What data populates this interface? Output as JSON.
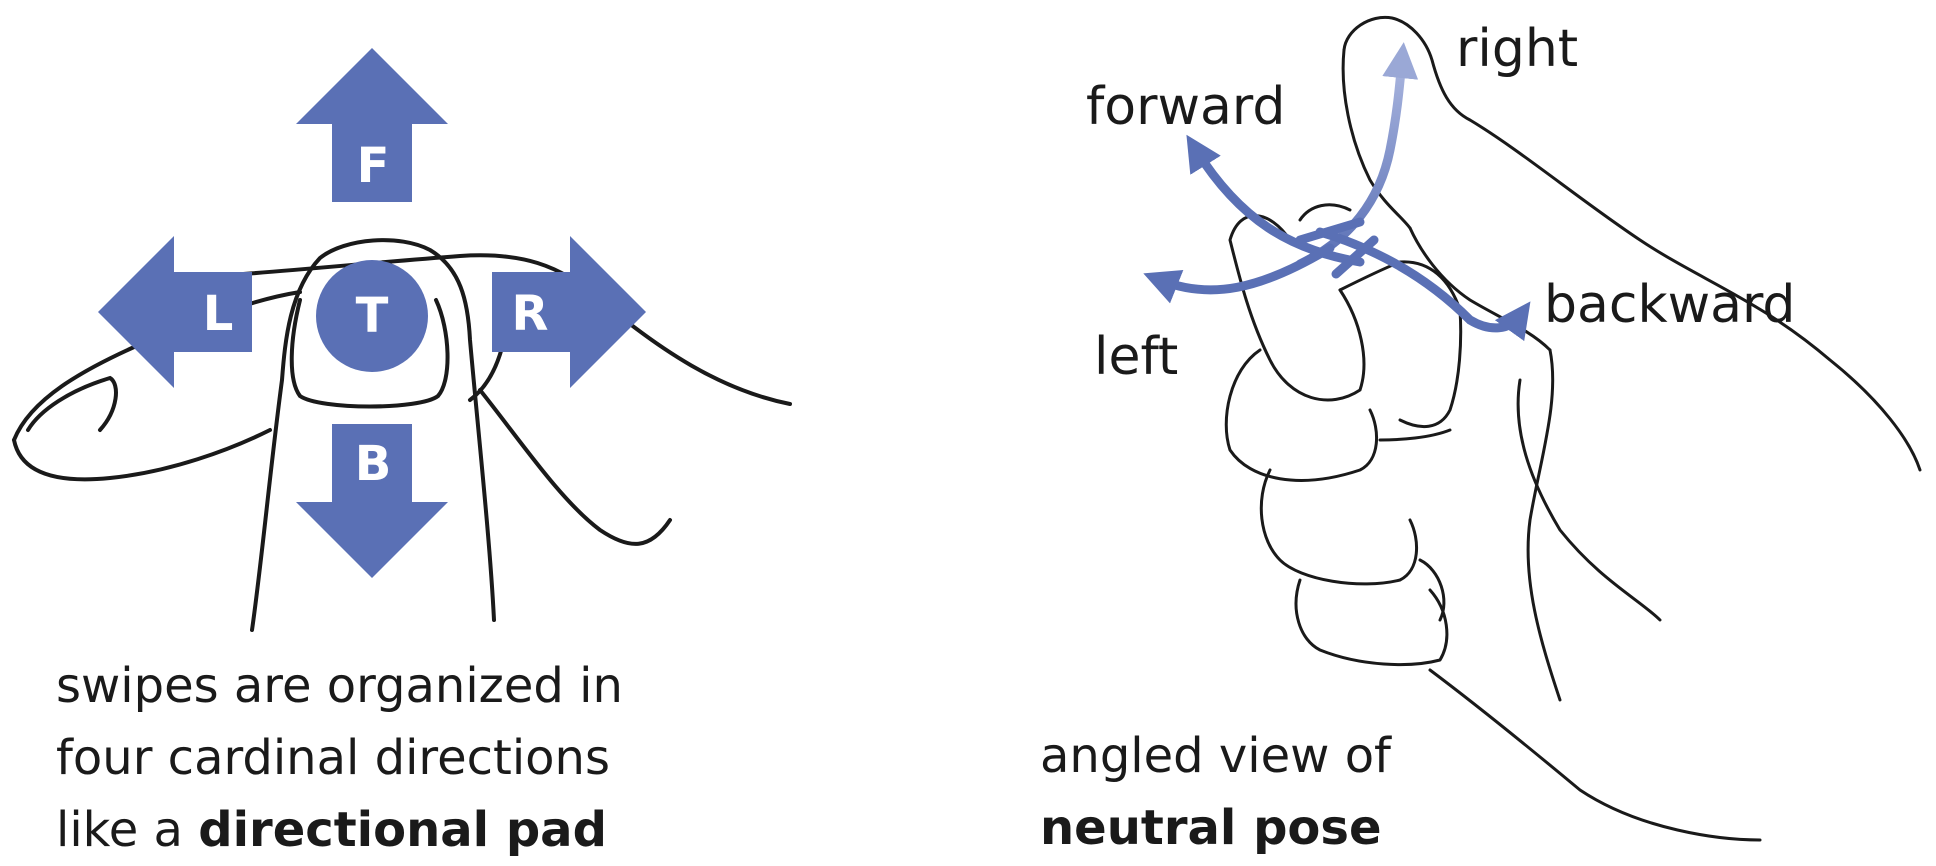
{
  "colors": {
    "accent": "#5a70b5",
    "accent_light": "#9aa8d6",
    "ink": "#1a1a1a",
    "background": "#ffffff"
  },
  "dpad": {
    "forward_label": "F",
    "backward_label": "B",
    "left_label": "L",
    "right_label": "R",
    "tap_label": "T"
  },
  "caption_left": {
    "line1": "swipes are organized in",
    "line2": "four cardinal directions",
    "line3_regular": "like a ",
    "line3_bold": "directional pad"
  },
  "pose": {
    "label_right": "right",
    "label_forward": "forward",
    "label_backward": "backward",
    "label_left": "left"
  },
  "caption_right": {
    "line1": "angled view of",
    "line2_bold": "neutral pose"
  }
}
